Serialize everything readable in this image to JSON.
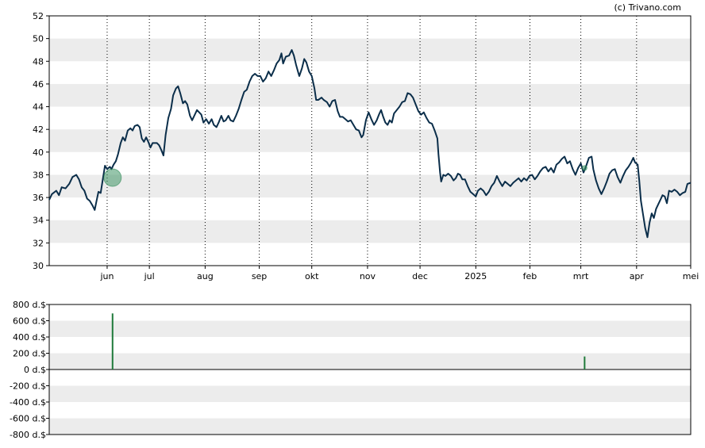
{
  "credit": "(c) Trivano.com",
  "colors": {
    "price_line": "#0b2e4a",
    "band": "#ececec",
    "marker": "#2e8b57",
    "bar": "#1f7a3a"
  },
  "chart_data": [
    {
      "type": "line",
      "title": "",
      "xlabel": "",
      "ylabel": "",
      "ylim": [
        30,
        52
      ],
      "yticks": [
        "30",
        "32",
        "34",
        "36",
        "38",
        "40",
        "42",
        "44",
        "46",
        "48",
        "50",
        "52"
      ],
      "grid": true,
      "xticks": [
        {
          "label": "jun",
          "x": 5.22
        },
        {
          "label": "jul",
          "x": 6.0
        },
        {
          "label": "aug",
          "x": 7.03
        },
        {
          "label": "sep",
          "x": 8.03
        },
        {
          "label": "okt",
          "x": 9.0
        },
        {
          "label": "nov",
          "x": 10.03
        },
        {
          "label": "dec",
          "x": 11.0
        },
        {
          "label": "2025",
          "x": 12.03
        },
        {
          "label": "feb",
          "x": 13.03
        },
        {
          "label": "mrt",
          "x": 13.97
        },
        {
          "label": "apr",
          "x": 15.0
        },
        {
          "label": "mei",
          "x": 16.0
        }
      ],
      "xlim": [
        4.15,
        16.0
      ],
      "series": [
        {
          "name": "",
          "points": [
            [
              4.15,
              35.8
            ],
            [
              4.2,
              36.3
            ],
            [
              4.28,
              36.6
            ],
            [
              4.33,
              36.2
            ],
            [
              4.38,
              36.9
            ],
            [
              4.45,
              36.8
            ],
            [
              4.52,
              37.2
            ],
            [
              4.58,
              37.8
            ],
            [
              4.65,
              38.0
            ],
            [
              4.7,
              37.6
            ],
            [
              4.75,
              36.9
            ],
            [
              4.8,
              36.6
            ],
            [
              4.85,
              35.9
            ],
            [
              4.9,
              35.7
            ],
            [
              4.95,
              35.3
            ],
            [
              4.99,
              34.9
            ],
            [
              5.02,
              35.6
            ],
            [
              5.06,
              36.5
            ],
            [
              5.1,
              36.4
            ],
            [
              5.14,
              37.6
            ],
            [
              5.18,
              38.8
            ],
            [
              5.22,
              38.5
            ],
            [
              5.27,
              38.7
            ],
            [
              5.3,
              38.5
            ],
            [
              5.34,
              38.9
            ],
            [
              5.38,
              39.2
            ],
            [
              5.42,
              39.8
            ],
            [
              5.47,
              40.8
            ],
            [
              5.51,
              41.3
            ],
            [
              5.55,
              41.0
            ],
            [
              5.6,
              41.9
            ],
            [
              5.65,
              42.1
            ],
            [
              5.69,
              41.9
            ],
            [
              5.73,
              42.3
            ],
            [
              5.78,
              42.4
            ],
            [
              5.82,
              42.2
            ],
            [
              5.86,
              41.2
            ],
            [
              5.9,
              40.9
            ],
            [
              5.94,
              41.3
            ],
            [
              5.98,
              40.9
            ],
            [
              6.02,
              40.4
            ],
            [
              6.06,
              40.8
            ],
            [
              6.1,
              40.8
            ],
            [
              6.14,
              40.8
            ],
            [
              6.18,
              40.6
            ],
            [
              6.22,
              40.2
            ],
            [
              6.26,
              39.7
            ],
            [
              6.3,
              41.5
            ],
            [
              6.35,
              43.0
            ],
            [
              6.4,
              43.8
            ],
            [
              6.44,
              45.0
            ],
            [
              6.49,
              45.6
            ],
            [
              6.53,
              45.8
            ],
            [
              6.57,
              45.2
            ],
            [
              6.62,
              44.3
            ],
            [
              6.66,
              44.5
            ],
            [
              6.7,
              44.2
            ],
            [
              6.75,
              43.2
            ],
            [
              6.79,
              42.8
            ],
            [
              6.83,
              43.2
            ],
            [
              6.88,
              43.7
            ],
            [
              6.92,
              43.5
            ],
            [
              6.96,
              43.3
            ],
            [
              7.0,
              42.6
            ],
            [
              7.05,
              42.9
            ],
            [
              7.1,
              42.5
            ],
            [
              7.15,
              42.9
            ],
            [
              7.19,
              42.4
            ],
            [
              7.24,
              42.2
            ],
            [
              7.28,
              42.6
            ],
            [
              7.33,
              43.2
            ],
            [
              7.37,
              42.7
            ],
            [
              7.41,
              42.8
            ],
            [
              7.46,
              43.2
            ],
            [
              7.5,
              42.8
            ],
            [
              7.55,
              42.7
            ],
            [
              7.6,
              43.2
            ],
            [
              7.65,
              43.8
            ],
            [
              7.7,
              44.6
            ],
            [
              7.75,
              45.3
            ],
            [
              7.8,
              45.5
            ],
            [
              7.85,
              46.2
            ],
            [
              7.9,
              46.7
            ],
            [
              7.95,
              46.9
            ],
            [
              8.0,
              46.7
            ],
            [
              8.05,
              46.7
            ],
            [
              8.1,
              46.2
            ],
            [
              8.15,
              46.5
            ],
            [
              8.2,
              47.1
            ],
            [
              8.25,
              46.7
            ],
            [
              8.3,
              47.2
            ],
            [
              8.35,
              47.8
            ],
            [
              8.4,
              48.1
            ],
            [
              8.44,
              48.7
            ],
            [
              8.47,
              47.8
            ],
            [
              8.52,
              48.4
            ],
            [
              8.58,
              48.5
            ],
            [
              8.63,
              49.0
            ],
            [
              8.67,
              48.5
            ],
            [
              8.71,
              47.7
            ],
            [
              8.75,
              47.0
            ],
            [
              8.77,
              46.7
            ],
            [
              8.82,
              47.4
            ],
            [
              8.86,
              48.2
            ],
            [
              8.9,
              47.9
            ],
            [
              8.95,
              47.1
            ],
            [
              9.0,
              46.7
            ],
            [
              9.05,
              45.6
            ],
            [
              9.08,
              44.6
            ],
            [
              9.12,
              44.6
            ],
            [
              9.18,
              44.8
            ],
            [
              9.22,
              44.6
            ],
            [
              9.28,
              44.4
            ],
            [
              9.33,
              44.0
            ],
            [
              9.38,
              44.5
            ],
            [
              9.43,
              44.6
            ],
            [
              9.48,
              43.6
            ],
            [
              9.52,
              43.1
            ],
            [
              9.57,
              43.1
            ],
            [
              9.62,
              42.9
            ],
            [
              9.67,
              42.7
            ],
            [
              9.72,
              42.8
            ],
            [
              9.77,
              42.4
            ],
            [
              9.82,
              42.0
            ],
            [
              9.87,
              41.9
            ],
            [
              9.92,
              41.3
            ],
            [
              9.95,
              41.5
            ],
            [
              10.0,
              42.8
            ],
            [
              10.05,
              43.5
            ],
            [
              10.1,
              42.9
            ],
            [
              10.15,
              42.4
            ],
            [
              10.2,
              42.8
            ],
            [
              10.24,
              43.3
            ],
            [
              10.28,
              43.7
            ],
            [
              10.32,
              43.1
            ],
            [
              10.36,
              42.6
            ],
            [
              10.4,
              42.4
            ],
            [
              10.44,
              42.8
            ],
            [
              10.48,
              42.6
            ],
            [
              10.52,
              43.4
            ],
            [
              10.57,
              43.7
            ],
            [
              10.62,
              44.0
            ],
            [
              10.67,
              44.4
            ],
            [
              10.72,
              44.5
            ],
            [
              10.77,
              45.2
            ],
            [
              10.82,
              45.1
            ],
            [
              10.87,
              44.8
            ],
            [
              10.92,
              44.2
            ],
            [
              10.97,
              43.6
            ],
            [
              11.02,
              43.3
            ],
            [
              11.07,
              43.5
            ],
            [
              11.12,
              43.0
            ],
            [
              11.17,
              42.6
            ],
            [
              11.22,
              42.5
            ],
            [
              11.27,
              41.9
            ],
            [
              11.32,
              41.2
            ],
            [
              11.34,
              39.8
            ],
            [
              11.37,
              38.2
            ],
            [
              11.39,
              37.4
            ],
            [
              11.43,
              38.0
            ],
            [
              11.47,
              37.9
            ],
            [
              11.52,
              38.1
            ],
            [
              11.57,
              37.9
            ],
            [
              11.62,
              37.5
            ],
            [
              11.66,
              37.7
            ],
            [
              11.7,
              38.1
            ],
            [
              11.74,
              38.0
            ],
            [
              11.78,
              37.6
            ],
            [
              11.83,
              37.6
            ],
            [
              11.88,
              37.0
            ],
            [
              11.93,
              36.5
            ],
            [
              11.98,
              36.3
            ],
            [
              12.03,
              36.1
            ],
            [
              12.07,
              36.6
            ],
            [
              12.12,
              36.8
            ],
            [
              12.17,
              36.6
            ],
            [
              12.22,
              36.2
            ],
            [
              12.27,
              36.5
            ],
            [
              12.32,
              37.0
            ],
            [
              12.37,
              37.3
            ],
            [
              12.42,
              37.9
            ],
            [
              12.47,
              37.4
            ],
            [
              12.52,
              37.0
            ],
            [
              12.57,
              37.4
            ],
            [
              12.62,
              37.2
            ],
            [
              12.67,
              37.0
            ],
            [
              12.72,
              37.3
            ],
            [
              12.77,
              37.5
            ],
            [
              12.82,
              37.7
            ],
            [
              12.87,
              37.4
            ],
            [
              12.92,
              37.7
            ],
            [
              12.97,
              37.5
            ],
            [
              13.02,
              37.9
            ],
            [
              13.07,
              38.0
            ],
            [
              13.12,
              37.6
            ],
            [
              13.17,
              37.9
            ],
            [
              13.22,
              38.3
            ],
            [
              13.27,
              38.6
            ],
            [
              13.32,
              38.7
            ],
            [
              13.37,
              38.3
            ],
            [
              13.42,
              38.6
            ],
            [
              13.47,
              38.2
            ],
            [
              13.52,
              38.9
            ],
            [
              13.57,
              39.1
            ],
            [
              13.62,
              39.4
            ],
            [
              13.67,
              39.6
            ],
            [
              13.72,
              39.0
            ],
            [
              13.77,
              39.2
            ],
            [
              13.82,
              38.5
            ],
            [
              13.87,
              38.0
            ],
            [
              13.92,
              38.6
            ],
            [
              13.97,
              39.0
            ],
            [
              14.02,
              38.2
            ],
            [
              14.07,
              38.8
            ],
            [
              14.12,
              39.5
            ],
            [
              14.17,
              39.6
            ],
            [
              14.2,
              38.5
            ],
            [
              14.25,
              37.5
            ],
            [
              14.3,
              36.8
            ],
            [
              14.35,
              36.3
            ],
            [
              14.4,
              36.8
            ],
            [
              14.45,
              37.4
            ],
            [
              14.5,
              38.1
            ],
            [
              14.55,
              38.4
            ],
            [
              14.6,
              38.5
            ],
            [
              14.65,
              37.8
            ],
            [
              14.7,
              37.3
            ],
            [
              14.75,
              37.9
            ],
            [
              14.8,
              38.4
            ],
            [
              14.85,
              38.7
            ],
            [
              14.9,
              39.1
            ],
            [
              14.94,
              39.5
            ],
            [
              14.97,
              39.1
            ],
            [
              15.02,
              38.9
            ],
            [
              15.05,
              37.5
            ],
            [
              15.08,
              35.7
            ],
            [
              15.12,
              34.5
            ],
            [
              15.16,
              33.3
            ],
            [
              15.2,
              32.5
            ],
            [
              15.24,
              33.8
            ],
            [
              15.28,
              34.6
            ],
            [
              15.32,
              34.2
            ],
            [
              15.36,
              35.0
            ],
            [
              15.4,
              35.4
            ],
            [
              15.44,
              35.8
            ],
            [
              15.48,
              36.2
            ],
            [
              15.52,
              36.1
            ],
            [
              15.56,
              35.5
            ],
            [
              15.6,
              36.6
            ],
            [
              15.65,
              36.5
            ],
            [
              15.7,
              36.7
            ],
            [
              15.75,
              36.5
            ],
            [
              15.8,
              36.2
            ],
            [
              15.85,
              36.4
            ],
            [
              15.9,
              36.5
            ],
            [
              15.94,
              37.2
            ],
            [
              16.0,
              37.3
            ]
          ]
        }
      ],
      "markers": [
        {
          "x": 5.32,
          "y": 37.75,
          "size": "large"
        },
        {
          "x": 14.04,
          "y": 38.6,
          "size": "small"
        }
      ]
    },
    {
      "type": "bar",
      "title": "",
      "ylim": [
        -800,
        800
      ],
      "yticks": [
        "800 d.$",
        "600 d.$",
        "400 d.$",
        "200 d.$",
        "0 d.$",
        "-200 d.$",
        "-400 d.$",
        "-600 d.$",
        "-800 d.$"
      ],
      "grid": true,
      "xlim": [
        4.15,
        16.0
      ],
      "bars": [
        {
          "x": 5.32,
          "value": 690
        },
        {
          "x": 14.04,
          "value": 160
        }
      ]
    }
  ]
}
